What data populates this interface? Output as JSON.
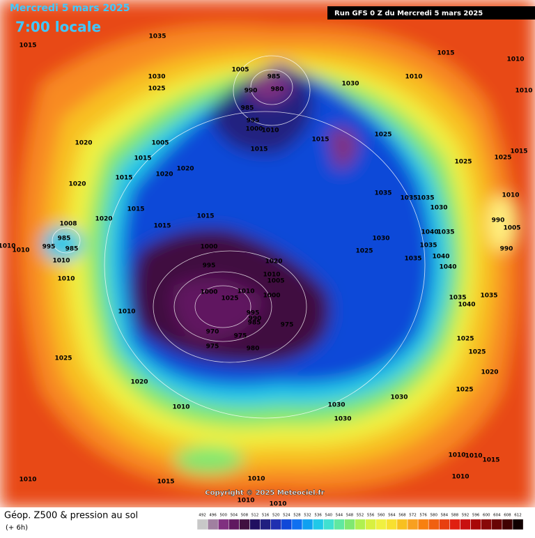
{
  "header": {
    "title": "Mercredi 5 mars 2025",
    "time": "7:00 locale",
    "run": "Run GFS 0 Z du Mercredi 5 mars 2025"
  },
  "footer": {
    "product": "Géop. Z500 & pression au sol",
    "lead": "(+ 6h)",
    "copyright": "Copyright © 2025 Meteociel.fr"
  },
  "scale": {
    "values": [
      492,
      496,
      500,
      504,
      508,
      512,
      516,
      520,
      524,
      528,
      532,
      536,
      540,
      544,
      548,
      552,
      556,
      560,
      564,
      568,
      572,
      576,
      580,
      584,
      588,
      592,
      596,
      600,
      604,
      608,
      612
    ],
    "colors": [
      "#c8c8c8",
      "#a080a0",
      "#803080",
      "#601860",
      "#401040",
      "#201060",
      "#202080",
      "#2030b0",
      "#1048d8",
      "#1070f0",
      "#10a0f0",
      "#20c8e8",
      "#40e0d0",
      "#60e8a0",
      "#80e870",
      "#b0f050",
      "#d8f040",
      "#f0f040",
      "#f8e030",
      "#f8c020",
      "#f8a020",
      "#f88010",
      "#f06010",
      "#e84010",
      "#e02010",
      "#c81010",
      "#a80808",
      "#880808",
      "#680404",
      "#400202",
      "#100000"
    ]
  },
  "pressure_labels": [
    1035,
    1015,
    1005,
    985,
    990,
    980,
    1030,
    1025,
    985,
    995,
    1000,
    1010,
    1030,
    1010,
    1015,
    1010,
    1010,
    1015,
    1025,
    1020,
    1005,
    1015,
    1015,
    1020,
    1020,
    1015,
    1025,
    1025,
    1015,
    1020,
    1035,
    1035,
    1035,
    1030,
    1010,
    1015,
    1020,
    1015,
    1015,
    1040,
    1035,
    990,
    1005,
    1030,
    1035,
    1025,
    1000,
    1008,
    985,
    995,
    985,
    1010,
    1010,
    990,
    1040,
    1040,
    1035,
    995,
    1020,
    1010,
    1005,
    1010,
    1010,
    1000,
    1010,
    1025,
    1000,
    995,
    990,
    985,
    975,
    970,
    975,
    975,
    980,
    1010,
    1035,
    1035,
    1040,
    1025,
    1025,
    1020,
    1025,
    1020,
    1025,
    1030,
    1030,
    1030,
    1010,
    1010,
    1010,
    1015,
    1010,
    1015,
    1010,
    1010,
    1010,
    1010
  ]
}
